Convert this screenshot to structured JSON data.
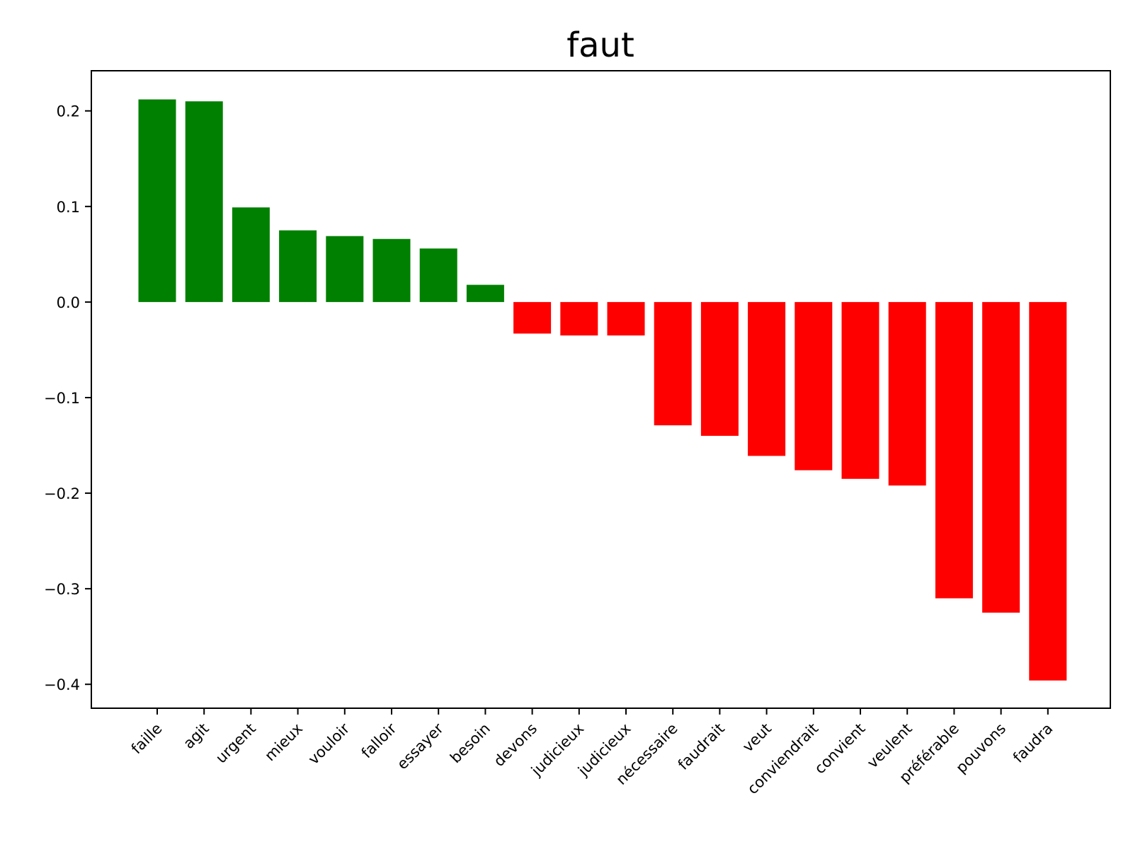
{
  "chart_data": {
    "type": "bar",
    "title": "faut",
    "xlabel": "",
    "ylabel": "",
    "ylim": [
      -0.425,
      0.242
    ],
    "yticks": [
      0.2,
      0.1,
      0.0,
      -0.1,
      -0.2,
      -0.3,
      -0.4
    ],
    "ytick_labels": [
      "0.2",
      "0.1",
      "0.0",
      "−0.1",
      "−0.2",
      "−0.3",
      "−0.4"
    ],
    "grid": false,
    "positive_color": "#008000",
    "negative_color": "#ff0000",
    "categories": [
      "faille",
      "agit",
      "urgent",
      "mieux",
      "vouloir",
      "falloir",
      "essayer",
      "besoin",
      "devons",
      "judicieux",
      "judicieux",
      "nécessaire",
      "faudrait",
      "veut",
      "conviendrait",
      "convient",
      "veulent",
      "préférable",
      "pouvons",
      "faudra"
    ],
    "values": [
      0.212,
      0.21,
      0.099,
      0.075,
      0.069,
      0.066,
      0.056,
      0.018,
      -0.033,
      -0.035,
      -0.035,
      -0.129,
      -0.14,
      -0.161,
      -0.176,
      -0.185,
      -0.192,
      -0.31,
      -0.325,
      -0.396
    ]
  }
}
